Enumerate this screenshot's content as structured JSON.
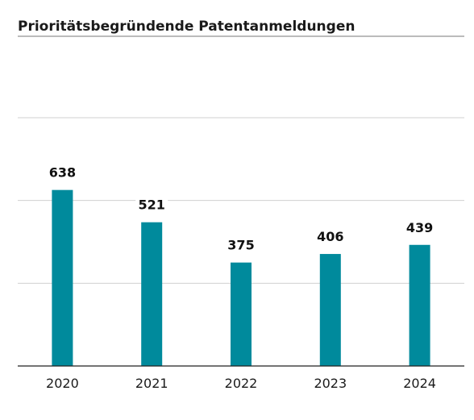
{
  "chart_data": {
    "type": "bar",
    "title": "Prioritätsbegründende Patentanmeldungen",
    "categories": [
      "2020",
      "2021",
      "2022",
      "2023",
      "2024"
    ],
    "values": [
      638,
      521,
      375,
      406,
      439
    ],
    "ylim": [
      0,
      900
    ],
    "grid": true,
    "xlabel": "",
    "ylabel": "",
    "colors": {
      "bar": "#008a9c",
      "grid": "#d0d0d0",
      "axis": "#222222",
      "title_rule": "#777777"
    }
  }
}
